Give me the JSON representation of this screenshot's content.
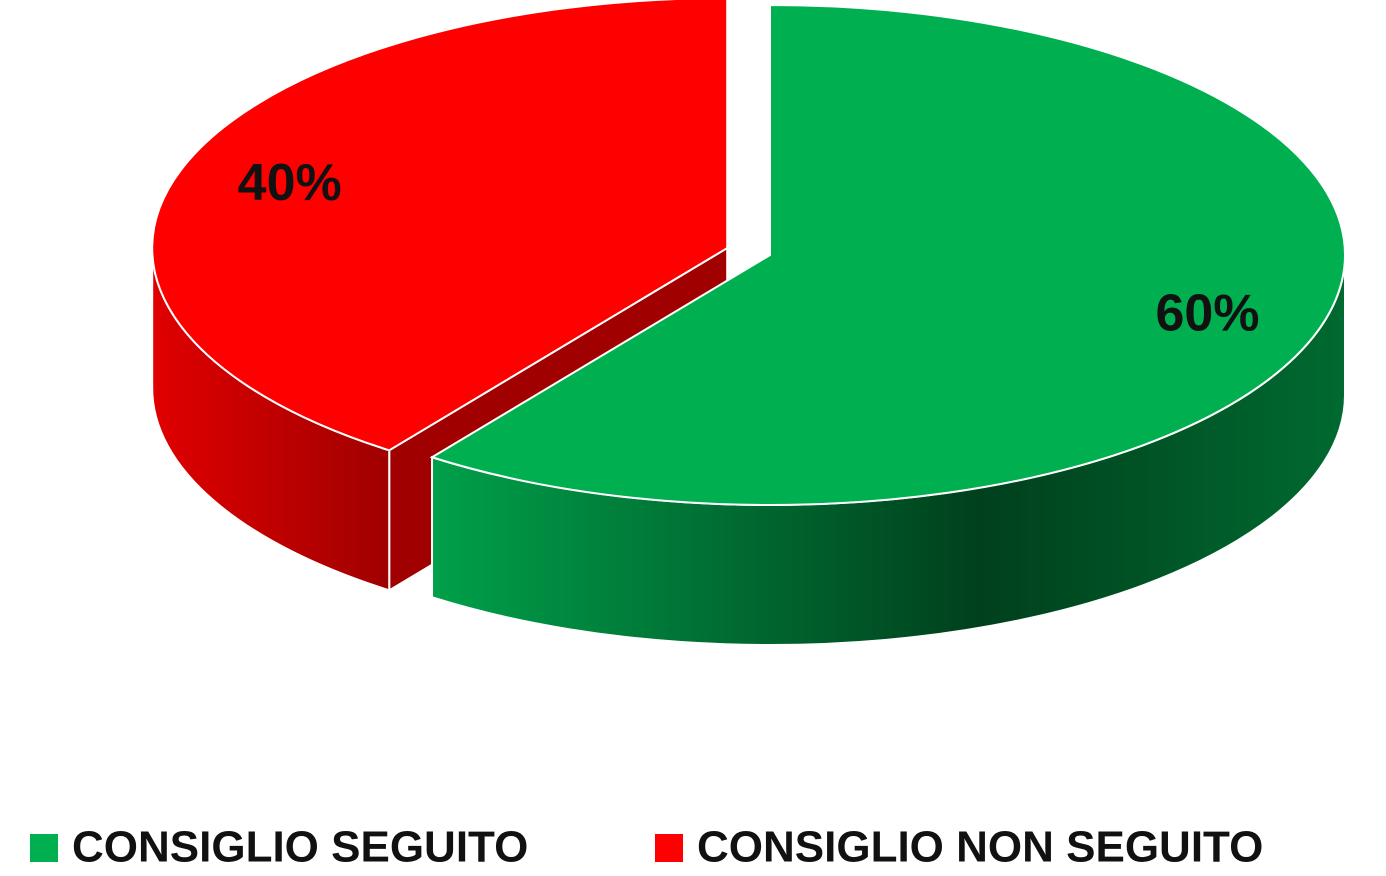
{
  "chart_data": {
    "type": "pie",
    "categories": [
      "CONSIGLIO SEGUITO",
      "CONSIGLIO NON SEGUITO"
    ],
    "values": [
      60,
      40
    ],
    "value_labels": [
      "60%",
      "40%"
    ],
    "colors": [
      "#00b050",
      "#ff0000"
    ],
    "legend": "bottom"
  }
}
